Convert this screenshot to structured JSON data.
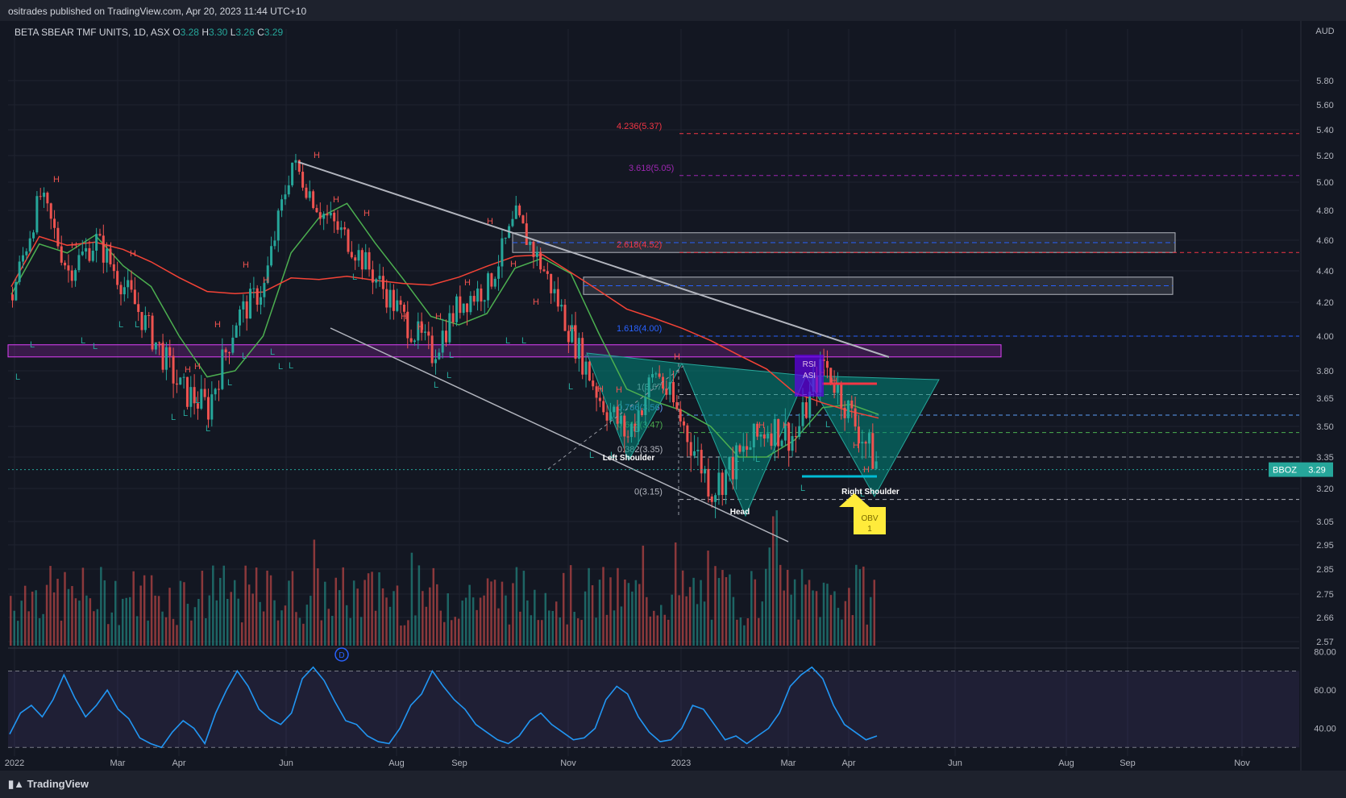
{
  "publisher_line": "ositrades published on TradingView.com, Apr 20, 2023 11:44 UTC+10",
  "brand": "TradingView",
  "legend": {
    "symbol": "BETA SBEAR TMF UNITS, 1D, ASX",
    "o_label": "O",
    "o": "3.28",
    "h_label": "H",
    "h": "3.30",
    "l_label": "L",
    "l": "3.26",
    "c_label": "C",
    "c": "3.29"
  },
  "currency": "AUD",
  "last_price": {
    "ticker": "BBOZ",
    "value": "3.29"
  },
  "colors": {
    "background": "#131722",
    "up": "#26a69a",
    "down": "#ef5350",
    "rsi": "#2196f3",
    "ma_fast": "#4caf50",
    "ma_slow": "#f44336",
    "fib_red": "#f23645",
    "fib_purple": "#9c27b0",
    "fib_blue": "#2962ff",
    "pattern_fill": "#00897b",
    "highlight_box": "#e040fb",
    "obv_badge": "#ffeb3b"
  },
  "annotations": {
    "left_shoulder": "Left Shoulder",
    "head": "Head",
    "right_shoulder": "Right Shoulder",
    "rsi_badge_1": "RSI",
    "rsi_badge_2": "ASI",
    "obv_badge": "OBV",
    "obv_num": "1",
    "divider_marker": "D",
    "high_marker": "H",
    "low_marker": "L"
  },
  "chart_data": {
    "type": "candlestick",
    "title": "BETA SBEAR TMF UNITS, 1D, ASX",
    "y_axis_ticks": [
      "5.80",
      "5.60",
      "5.40",
      "5.20",
      "5.00",
      "4.80",
      "4.60",
      "4.40",
      "4.20",
      "4.00",
      "3.80",
      "3.65",
      "3.50",
      "3.35",
      "3.20",
      "3.05",
      "2.95",
      "2.85",
      "2.75",
      "2.66",
      "2.57"
    ],
    "y_axis_values": [
      5.8,
      5.6,
      5.4,
      5.2,
      5.0,
      4.8,
      4.6,
      4.4,
      4.2,
      4.0,
      3.8,
      3.65,
      3.5,
      3.35,
      3.2,
      3.05,
      2.95,
      2.85,
      2.75,
      2.66,
      2.57
    ],
    "x_axis_ticks": [
      "2022",
      "Mar",
      "Apr",
      "Jun",
      "Aug",
      "Sep",
      "Nov",
      "2023",
      "Mar",
      "Apr",
      "Jun",
      "Aug",
      "Sep",
      "Nov"
    ],
    "price_path": [
      {
        "t": "2022-01",
        "v": 4.25
      },
      {
        "t": "2022-01b",
        "v": 4.9
      },
      {
        "t": "2022-02",
        "v": 4.4
      },
      {
        "t": "2022-02b",
        "v": 4.6
      },
      {
        "t": "2022-03",
        "v": 4.3
      },
      {
        "t": "2022-03b",
        "v": 4.0
      },
      {
        "t": "2022-04",
        "v": 3.7
      },
      {
        "t": "2022-04b",
        "v": 3.6
      },
      {
        "t": "2022-05",
        "v": 4.1
      },
      {
        "t": "2022-05b",
        "v": 4.3
      },
      {
        "t": "2022-06",
        "v": 5.15
      },
      {
        "t": "2022-06b",
        "v": 4.8
      },
      {
        "t": "2022-07",
        "v": 4.6
      },
      {
        "t": "2022-07b",
        "v": 4.35
      },
      {
        "t": "2022-08",
        "v": 4.1
      },
      {
        "t": "2022-08b",
        "v": 3.9
      },
      {
        "t": "2022-09",
        "v": 4.2
      },
      {
        "t": "2022-09b",
        "v": 4.3
      },
      {
        "t": "2022-10",
        "v": 4.75
      },
      {
        "t": "2022-10b",
        "v": 4.4
      },
      {
        "t": "2022-11",
        "v": 4.0
      },
      {
        "t": "2022-11b",
        "v": 3.65
      },
      {
        "t": "2022-12",
        "v": 3.45
      },
      {
        "t": "2022-12b",
        "v": 3.8
      },
      {
        "t": "2023-01",
        "v": 3.5
      },
      {
        "t": "2023-01b",
        "v": 3.2
      },
      {
        "t": "2023-02",
        "v": 3.35
      },
      {
        "t": "2023-02b",
        "v": 3.5
      },
      {
        "t": "2023-03",
        "v": 3.45
      },
      {
        "t": "2023-03b",
        "v": 3.85
      },
      {
        "t": "2023-04",
        "v": 3.55
      },
      {
        "t": "2023-04b",
        "v": 3.29
      }
    ],
    "fib_levels": [
      {
        "label": "4.236(5.37)",
        "value": 5.37
      },
      {
        "label": "3.618(5.05)",
        "value": 5.05
      },
      {
        "label": "2.618(4.52)",
        "value": 4.52
      },
      {
        "label": "1.618(4.00)",
        "value": 4.0
      },
      {
        "label": "1(3.67)",
        "value": 3.67
      },
      {
        "label": "0.786(3.56)",
        "value": 3.56
      },
      {
        "label": "0.618(3.47)",
        "value": 3.47
      },
      {
        "label": "0.382(3.35)",
        "value": 3.35
      },
      {
        "label": "0(3.15)",
        "value": 3.15
      }
    ],
    "resistance_zones": [
      {
        "low": 4.52,
        "high": 4.65
      },
      {
        "low": 4.25,
        "high": 4.36
      },
      {
        "low": 3.88,
        "high": 3.95
      }
    ],
    "rsi": {
      "y_axis_ticks": [
        "80.00",
        "60.00",
        "40.00"
      ],
      "levels": [
        70,
        30
      ],
      "values": [
        37,
        48,
        52,
        46,
        55,
        68,
        56,
        46,
        52,
        60,
        50,
        45,
        35,
        32,
        30,
        38,
        44,
        40,
        32,
        48,
        60,
        70,
        62,
        50,
        45,
        42,
        48,
        66,
        72,
        65,
        54,
        44,
        42,
        36,
        33,
        32,
        40,
        52,
        58,
        70,
        62,
        55,
        50,
        42,
        38,
        34,
        32,
        36,
        44,
        48,
        42,
        38,
        34,
        35,
        40,
        55,
        62,
        58,
        46,
        38,
        33,
        34,
        40,
        52,
        50,
        42,
        34,
        36,
        32,
        36,
        40,
        48,
        62,
        68,
        72,
        66,
        52,
        42,
        38,
        34,
        36
      ]
    },
    "volume_bar_count": 240
  }
}
